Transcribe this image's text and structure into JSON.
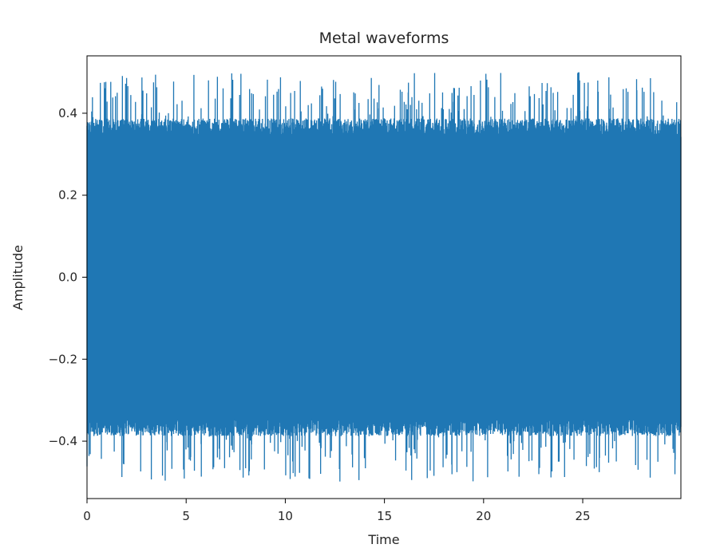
{
  "chart_data": {
    "type": "line",
    "title": "Metal waveforms",
    "xlabel": "Time",
    "ylabel": "Amplitude",
    "xlim": [
      0,
      29.95
    ],
    "ylim": [
      -0.54,
      0.54
    ],
    "x_ticks": [
      0,
      5,
      10,
      15,
      20,
      25
    ],
    "x_tick_labels": [
      "0",
      "5",
      "10",
      "15",
      "20",
      "25"
    ],
    "y_ticks": [
      0.4,
      0.2,
      0.0,
      -0.2,
      -0.4
    ],
    "y_tick_labels": [
      "0.4",
      "0.2",
      "0.0",
      "−0.2",
      "−0.4"
    ],
    "grid": false,
    "series": [
      {
        "color": "#1f77b4",
        "duration": 29.95,
        "typical_peak": 0.38,
        "max_peak": 0.5,
        "min_peak": -0.5
      }
    ]
  }
}
